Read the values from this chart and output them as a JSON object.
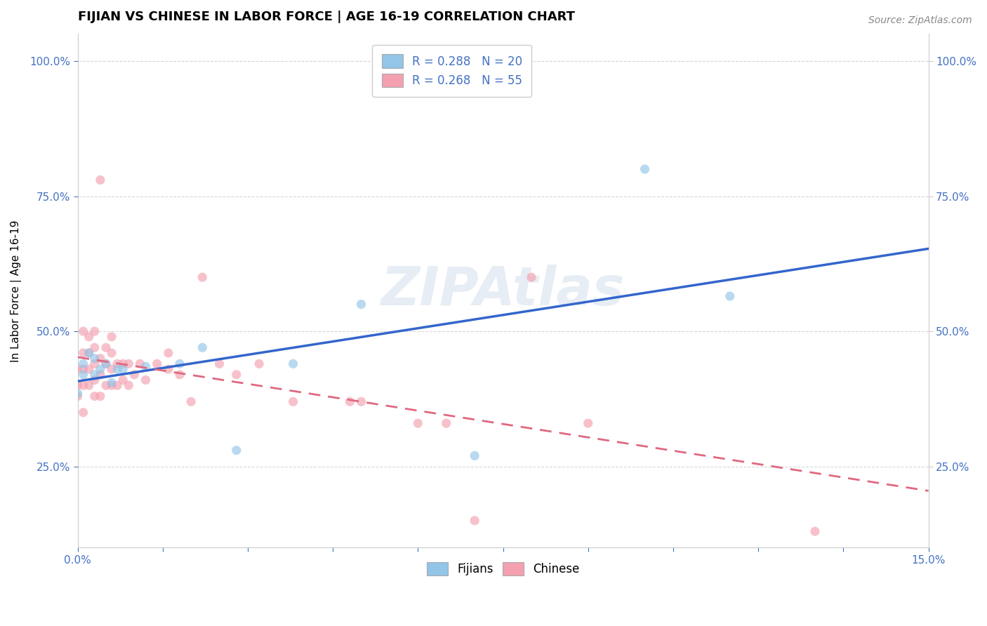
{
  "title": "FIJIAN VS CHINESE IN LABOR FORCE | AGE 16-19 CORRELATION CHART",
  "source_text": "Source: ZipAtlas.com",
  "ylabel": "In Labor Force | Age 16-19",
  "xlim": [
    0.0,
    0.15
  ],
  "ylim": [
    0.1,
    1.05
  ],
  "ytick_labels": [
    "25.0%",
    "50.0%",
    "75.0%",
    "100.0%"
  ],
  "ytick_values": [
    0.25,
    0.5,
    0.75,
    1.0
  ],
  "right_ytick_labels": [
    "25.0%",
    "50.0%",
    "75.0%",
    "100.0%"
  ],
  "right_ytick_values": [
    0.25,
    0.5,
    0.75,
    1.0
  ],
  "fijian_color": "#92c5e8",
  "fijian_line_color": "#3366cc",
  "chinese_color": "#f4a0b0",
  "chinese_line_color": "#e06880",
  "legend_fijian_label": "R = 0.288   N = 20",
  "legend_chinese_label": "R = 0.268   N = 55",
  "bottom_legend_fijian": "Fijians",
  "bottom_legend_chinese": "Chinese",
  "watermark": "ZIPAtlas",
  "fijian_scatter_x": [
    0.0,
    0.001,
    0.001,
    0.002,
    0.003,
    0.003,
    0.004,
    0.005,
    0.006,
    0.007,
    0.008,
    0.012,
    0.018,
    0.022,
    0.028,
    0.038,
    0.05,
    0.07,
    0.1,
    0.115
  ],
  "fijian_scatter_y": [
    0.385,
    0.42,
    0.44,
    0.46,
    0.42,
    0.45,
    0.43,
    0.44,
    0.405,
    0.43,
    0.43,
    0.435,
    0.44,
    0.47,
    0.28,
    0.44,
    0.55,
    0.27,
    0.8,
    0.565
  ],
  "chinese_scatter_x": [
    0.0,
    0.0,
    0.0,
    0.001,
    0.001,
    0.001,
    0.001,
    0.001,
    0.002,
    0.002,
    0.002,
    0.002,
    0.003,
    0.003,
    0.003,
    0.003,
    0.003,
    0.004,
    0.004,
    0.004,
    0.004,
    0.005,
    0.005,
    0.005,
    0.006,
    0.006,
    0.006,
    0.006,
    0.007,
    0.007,
    0.008,
    0.008,
    0.009,
    0.009,
    0.01,
    0.011,
    0.012,
    0.014,
    0.016,
    0.016,
    0.018,
    0.02,
    0.022,
    0.025,
    0.028,
    0.032,
    0.038,
    0.048,
    0.05,
    0.06,
    0.065,
    0.07,
    0.08,
    0.09,
    0.13
  ],
  "chinese_scatter_y": [
    0.38,
    0.4,
    0.43,
    0.35,
    0.4,
    0.43,
    0.46,
    0.5,
    0.4,
    0.43,
    0.46,
    0.49,
    0.38,
    0.41,
    0.44,
    0.47,
    0.5,
    0.38,
    0.42,
    0.45,
    0.78,
    0.4,
    0.44,
    0.47,
    0.4,
    0.43,
    0.46,
    0.49,
    0.4,
    0.44,
    0.41,
    0.44,
    0.4,
    0.44,
    0.42,
    0.44,
    0.41,
    0.44,
    0.43,
    0.46,
    0.42,
    0.37,
    0.6,
    0.44,
    0.42,
    0.44,
    0.37,
    0.37,
    0.37,
    0.33,
    0.33,
    0.15,
    0.6,
    0.33,
    0.13
  ],
  "marker_size": 90,
  "marker_alpha": 0.65,
  "grid_color": "#d8d8d8",
  "grid_linestyle": "--",
  "background_color": "#ffffff",
  "title_fontsize": 13,
  "axis_label_fontsize": 11,
  "tick_fontsize": 11,
  "legend_fontsize": 12,
  "source_fontsize": 10,
  "tick_color": "#4472c4"
}
